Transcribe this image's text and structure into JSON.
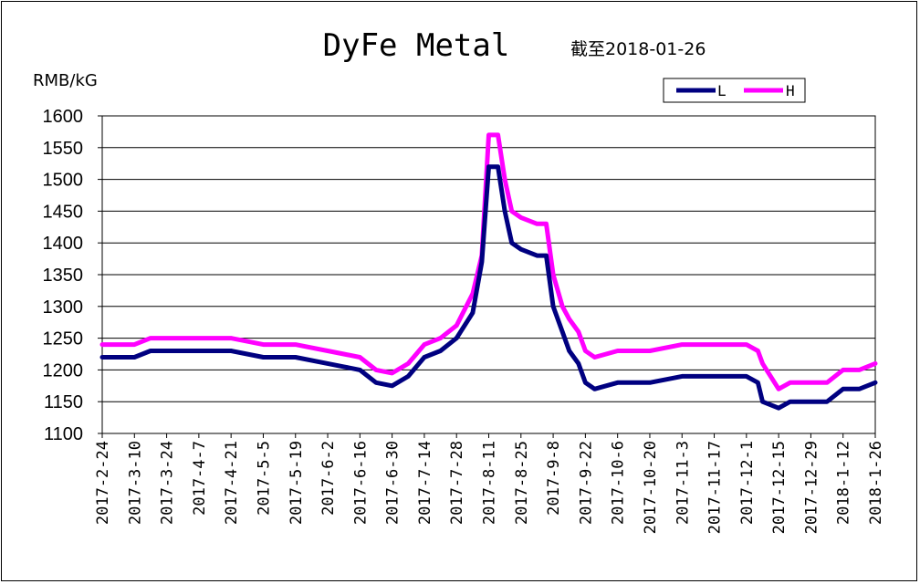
{
  "chart_data": {
    "type": "line",
    "title": "DyFe Metal",
    "subtitle": "截至2018-01-26",
    "ylabel": "RMB/kG",
    "ylim": [
      1100,
      1600
    ],
    "yticks": [
      1100,
      1150,
      1200,
      1250,
      1300,
      1350,
      1400,
      1450,
      1500,
      1550,
      1600
    ],
    "grid": true,
    "legend_position": "top-right",
    "x_tick_labels": [
      "2017-2-24",
      "2017-3-10",
      "2017-3-24",
      "2017-4-7",
      "2017-4-21",
      "2017-5-5",
      "2017-5-19",
      "2017-6-2",
      "2017-6-16",
      "2017-6-30",
      "2017-7-14",
      "2017-7-28",
      "2017-8-11",
      "2017-8-25",
      "2017-9-8",
      "2017-9-22",
      "2017-10-6",
      "2017-10-20",
      "2017-11-3",
      "2017-11-17",
      "2017-12-1",
      "2017-12-15",
      "2017-12-29",
      "2018-1-12",
      "2018-1-26"
    ],
    "x": [
      "2017-2-24",
      "2017-3-10",
      "2017-3-17",
      "2017-3-24",
      "2017-4-7",
      "2017-4-21",
      "2017-5-5",
      "2017-5-19",
      "2017-6-2",
      "2017-6-9",
      "2017-6-16",
      "2017-6-23",
      "2017-6-30",
      "2017-7-7",
      "2017-7-14",
      "2017-7-21",
      "2017-7-28",
      "2017-8-4",
      "2017-8-8",
      "2017-8-11",
      "2017-8-15",
      "2017-8-18",
      "2017-8-21",
      "2017-8-25",
      "2017-9-1",
      "2017-9-5",
      "2017-9-8",
      "2017-9-12",
      "2017-9-15",
      "2017-9-19",
      "2017-9-22",
      "2017-9-26",
      "2017-10-6",
      "2017-10-20",
      "2017-11-3",
      "2017-11-17",
      "2017-12-1",
      "2017-12-6",
      "2017-12-8",
      "2017-12-15",
      "2017-12-20",
      "2017-12-29",
      "2018-1-5",
      "2018-1-12",
      "2018-1-19",
      "2018-1-26"
    ],
    "series": [
      {
        "name": "L",
        "color": "#000080",
        "values": [
          1220,
          1220,
          1230,
          1230,
          1230,
          1230,
          1220,
          1220,
          1210,
          1205,
          1200,
          1180,
          1175,
          1190,
          1220,
          1230,
          1250,
          1290,
          1370,
          1520,
          1520,
          1450,
          1400,
          1390,
          1380,
          1380,
          1300,
          1260,
          1230,
          1210,
          1180,
          1170,
          1180,
          1180,
          1190,
          1190,
          1190,
          1180,
          1150,
          1140,
          1150,
          1150,
          1150,
          1170,
          1170,
          1180
        ]
      },
      {
        "name": "H",
        "color": "#ff00ff",
        "values": [
          1240,
          1240,
          1250,
          1250,
          1250,
          1250,
          1240,
          1240,
          1230,
          1225,
          1220,
          1200,
          1195,
          1210,
          1240,
          1250,
          1270,
          1320,
          1380,
          1570,
          1570,
          1500,
          1450,
          1440,
          1430,
          1430,
          1350,
          1300,
          1280,
          1260,
          1230,
          1220,
          1230,
          1230,
          1240,
          1240,
          1240,
          1230,
          1210,
          1170,
          1180,
          1180,
          1180,
          1200,
          1200,
          1210
        ]
      }
    ]
  }
}
